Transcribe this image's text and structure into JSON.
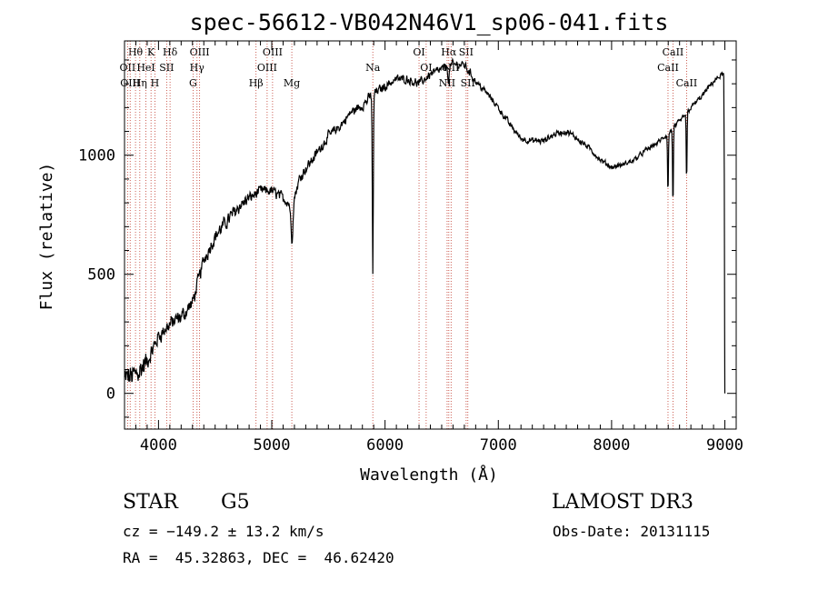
{
  "chart_data": {
    "type": "line",
    "title": "spec-56612-VB042N46V1_sp06-041.fits",
    "xlabel": "Wavelength (Å)",
    "ylabel": "Flux (relative)",
    "xlim": [
      3700,
      9100
    ],
    "ylim": [
      -150,
      1480
    ],
    "x_ticks": [
      4000,
      5000,
      6000,
      7000,
      8000,
      9000
    ],
    "y_ticks": [
      0,
      500,
      1000
    ],
    "series": [
      {
        "name": "spectrum",
        "color": "#000000",
        "noise": [
          [
            3700,
            3900,
            70
          ],
          [
            3900,
            4300,
            45
          ],
          [
            4300,
            4800,
            40
          ],
          [
            4800,
            5400,
            30
          ],
          [
            5400,
            5900,
            28
          ],
          [
            5900,
            6800,
            25
          ],
          [
            6800,
            7800,
            18
          ],
          [
            7800,
            8500,
            14
          ],
          [
            8500,
            9000,
            15
          ]
        ],
        "anchors": [
          [
            3700,
            60
          ],
          [
            3800,
            80
          ],
          [
            3900,
            130
          ],
          [
            4000,
            240
          ],
          [
            4100,
            290
          ],
          [
            4200,
            320
          ],
          [
            4300,
            380
          ],
          [
            4400,
            560
          ],
          [
            4500,
            660
          ],
          [
            4600,
            720
          ],
          [
            4700,
            780
          ],
          [
            4800,
            820
          ],
          [
            4900,
            850
          ],
          [
            5000,
            850
          ],
          [
            5100,
            820
          ],
          [
            5180,
            790
          ],
          [
            5250,
            910
          ],
          [
            5400,
            1010
          ],
          [
            5500,
            1080
          ],
          [
            5600,
            1120
          ],
          [
            5700,
            1180
          ],
          [
            5800,
            1210
          ],
          [
            5900,
            1260
          ],
          [
            6000,
            1290
          ],
          [
            6100,
            1320
          ],
          [
            6200,
            1320
          ],
          [
            6300,
            1300
          ],
          [
            6400,
            1340
          ],
          [
            6500,
            1360
          ],
          [
            6600,
            1380
          ],
          [
            6700,
            1380
          ],
          [
            6800,
            1310
          ],
          [
            6900,
            1260
          ],
          [
            7000,
            1200
          ],
          [
            7100,
            1130
          ],
          [
            7200,
            1070
          ],
          [
            7300,
            1060
          ],
          [
            7400,
            1060
          ],
          [
            7500,
            1090
          ],
          [
            7600,
            1100
          ],
          [
            7700,
            1070
          ],
          [
            7800,
            1030
          ],
          [
            7900,
            980
          ],
          [
            8000,
            950
          ],
          [
            8100,
            960
          ],
          [
            8200,
            980
          ],
          [
            8300,
            1020
          ],
          [
            8400,
            1050
          ],
          [
            8500,
            1090
          ],
          [
            8600,
            1140
          ],
          [
            8700,
            1200
          ],
          [
            8800,
            1250
          ],
          [
            8900,
            1310
          ],
          [
            8980,
            1340
          ]
        ],
        "absorptions": [
          [
            5892,
            760,
            6
          ],
          [
            6562,
            60,
            8
          ],
          [
            8498,
            260,
            5
          ],
          [
            8542,
            330,
            5
          ],
          [
            8662,
            300,
            5
          ],
          [
            5177,
            150,
            12
          ]
        ],
        "tail": [
          [
            8990,
            1330
          ],
          [
            8995,
            920
          ],
          [
            8998,
            260
          ],
          [
            9000,
            0
          ]
        ]
      }
    ],
    "line_markers": [
      {
        "label": "Hθ",
        "wavelength": 3797,
        "row": 1
      },
      {
        "label": "OII",
        "wavelength": 3727,
        "row": 2
      },
      {
        "label": "OIII",
        "wavelength": 3750,
        "row": 3
      },
      {
        "label": "K",
        "wavelength": 3934,
        "row": 1
      },
      {
        "label": "HeI",
        "wavelength": 3889,
        "row": 2
      },
      {
        "label": "Hη",
        "wavelength": 3835,
        "row": 3
      },
      {
        "label": "Hδ",
        "wavelength": 4102,
        "row": 1
      },
      {
        "label": "SII",
        "wavelength": 4072,
        "row": 2
      },
      {
        "label": "H",
        "wavelength": 3968,
        "row": 3
      },
      {
        "label": "OIII",
        "wavelength": 4363,
        "row": 1
      },
      {
        "label": "Hγ",
        "wavelength": 4340,
        "row": 2
      },
      {
        "label": "G",
        "wavelength": 4305,
        "row": 3
      },
      {
        "label": "OIII",
        "wavelength": 5007,
        "row": 1
      },
      {
        "label": "OIII",
        "wavelength": 4959,
        "row": 2
      },
      {
        "label": "Hβ",
        "wavelength": 4861,
        "row": 3
      },
      {
        "label": "Mg",
        "wavelength": 5177,
        "row": 3
      },
      {
        "label": "Na",
        "wavelength": 5892,
        "row": 2
      },
      {
        "label": "OI",
        "wavelength": 6300,
        "row": 1
      },
      {
        "label": "OI",
        "wavelength": 6363,
        "row": 2
      },
      {
        "label": "Hα",
        "wavelength": 6563,
        "row": 1
      },
      {
        "label": "NII",
        "wavelength": 6583,
        "row": 2
      },
      {
        "label": "NII",
        "wavelength": 6548,
        "row": 3
      },
      {
        "label": "SII",
        "wavelength": 6716,
        "row": 1
      },
      {
        "label": "SII",
        "wavelength": 6731,
        "row": 3
      },
      {
        "label": "CaII",
        "wavelength": 8542,
        "row": 1
      },
      {
        "label": "CaII",
        "wavelength": 8498,
        "row": 2
      },
      {
        "label": "CaII",
        "wavelength": 8662,
        "row": 3
      }
    ]
  },
  "info": {
    "object_class": "STAR",
    "subclass": "G5",
    "survey": "LAMOST DR3",
    "redshift": "cz = −149.2 ± 13.2 km/s",
    "obs_date": "Obs-Date: 20131115",
    "coords": "RA =  45.32863, DEC =  46.62420"
  }
}
